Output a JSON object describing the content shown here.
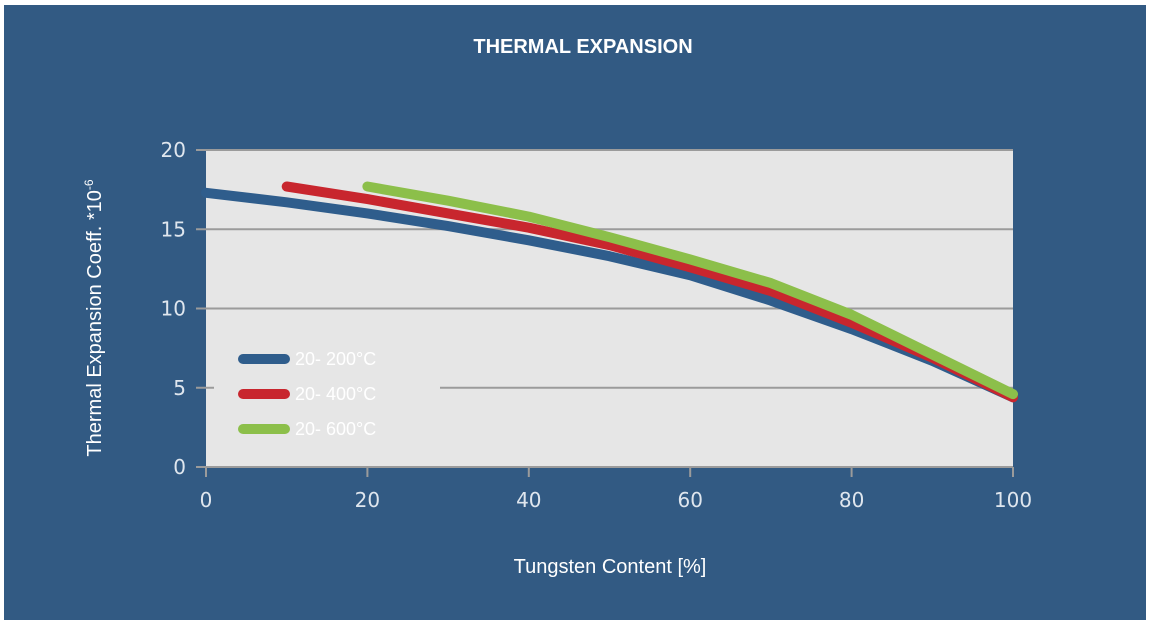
{
  "chart_data": {
    "type": "line",
    "title": "THERMAL EXPANSION",
    "xlabel": "Tungsten Content [%]",
    "ylabel": "Thermal Expansion Coeff. *10",
    "ylabel_exponent": "-6",
    "xlim": [
      0,
      100
    ],
    "ylim": [
      0,
      20
    ],
    "xticks": [
      "0",
      "20",
      "40",
      "60",
      "80",
      "100"
    ],
    "yticks": [
      "0",
      "5",
      "10",
      "15",
      "20"
    ],
    "grid": "horizontal",
    "legend_position": "bottom-left",
    "series": [
      {
        "name": "20- 200°C",
        "color": "#2f5d8c",
        "x": [
          0,
          10,
          20,
          30,
          40,
          50,
          60,
          70,
          80,
          90,
          100
        ],
        "y": [
          17.3,
          16.7,
          16.0,
          15.2,
          14.3,
          13.3,
          12.1,
          10.5,
          8.7,
          6.7,
          4.4
        ]
      },
      {
        "name": "20- 400°C",
        "color": "#c8262e",
        "x": [
          10,
          20,
          30,
          40,
          50,
          60,
          70,
          80,
          90,
          100
        ],
        "y": [
          17.7,
          16.9,
          16.0,
          15.1,
          14.0,
          12.6,
          11.1,
          9.1,
          6.9,
          4.4
        ]
      },
      {
        "name": "20- 600°C",
        "color": "#8cbf4a",
        "x": [
          20,
          30,
          40,
          50,
          60,
          70,
          80,
          90,
          100
        ],
        "y": [
          17.7,
          16.8,
          15.8,
          14.5,
          13.1,
          11.6,
          9.6,
          7.1,
          4.6
        ]
      }
    ]
  }
}
